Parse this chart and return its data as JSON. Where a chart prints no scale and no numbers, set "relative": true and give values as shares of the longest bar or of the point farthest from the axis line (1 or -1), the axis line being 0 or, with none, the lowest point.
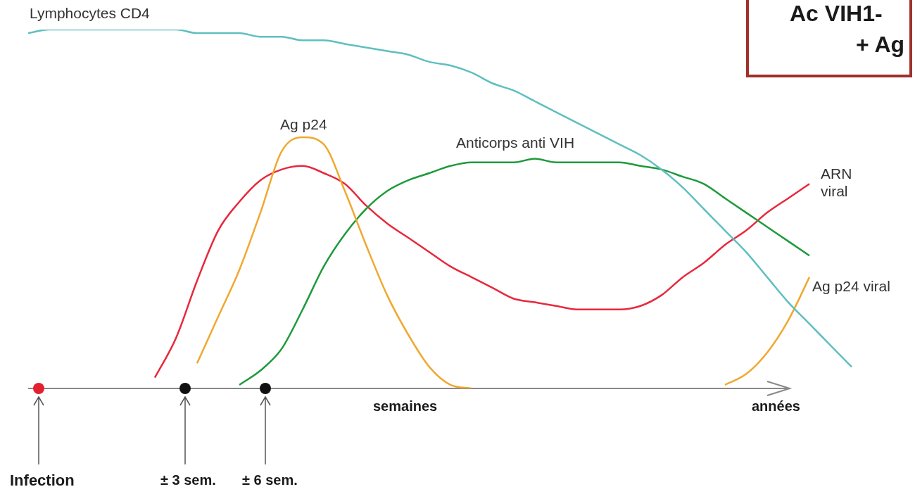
{
  "chart_data": {
    "type": "line",
    "relative": true,
    "categories": [
      null,
      null,
      null,
      null,
      null,
      null,
      null,
      null,
      null,
      null,
      null,
      null,
      null,
      null,
      null,
      null,
      null,
      null,
      null,
      null,
      null,
      null,
      null,
      null,
      null,
      null,
      null,
      null,
      null,
      null,
      null,
      null,
      null,
      null,
      null,
      null,
      null,
      null,
      null,
      null
    ],
    "series": [
      {
        "name": "Lymphocytes CD4",
        "color": "#5fbfbf",
        "values": [
          0.99,
          1.0,
          1.0,
          1.0,
          1.0,
          1.0,
          1.0,
          1.0,
          0.99,
          0.99,
          0.99,
          0.98,
          0.98,
          0.97,
          0.97,
          0.96,
          0.95,
          0.94,
          0.93,
          0.91,
          0.9,
          0.88,
          0.85,
          0.83,
          0.8,
          0.77,
          0.74,
          0.71,
          0.68,
          0.65,
          0.61,
          0.56,
          0.5,
          0.44,
          0.38,
          0.31,
          0.24,
          0.18,
          0.12,
          0.06
        ]
      },
      {
        "name": "Ag p24",
        "color": "#f0a830",
        "values": [
          null,
          null,
          null,
          null,
          null,
          null,
          null,
          null,
          0.07,
          0.2,
          0.33,
          0.49,
          0.66,
          0.7,
          0.68,
          0.55,
          0.4,
          0.26,
          0.15,
          0.06,
          0.01,
          0.0,
          null,
          null,
          null,
          null,
          null,
          null,
          null,
          null,
          null,
          null,
          null,
          null,
          null,
          null,
          null,
          null,
          null,
          null
        ]
      },
      {
        "name": "Anticorps anti VIH",
        "color": "#1e9a3c",
        "values": [
          null,
          null,
          null,
          null,
          null,
          null,
          null,
          null,
          null,
          null,
          0.01,
          0.05,
          0.11,
          0.22,
          0.34,
          0.43,
          0.5,
          0.55,
          0.58,
          0.6,
          0.62,
          0.63,
          0.63,
          0.63,
          0.64,
          0.63,
          0.63,
          0.63,
          0.63,
          0.62,
          0.61,
          0.59,
          0.57,
          0.53,
          0.49,
          0.45,
          0.41,
          0.37,
          null,
          null
        ]
      },
      {
        "name": "ARN viral",
        "color": "#e8283c",
        "values": [
          null,
          null,
          null,
          null,
          null,
          null,
          0.03,
          0.14,
          0.3,
          0.44,
          0.52,
          0.58,
          0.61,
          0.62,
          0.6,
          0.57,
          0.51,
          0.46,
          0.42,
          0.38,
          0.34,
          0.31,
          0.28,
          0.25,
          0.24,
          0.23,
          0.22,
          0.22,
          0.22,
          0.23,
          0.26,
          0.31,
          0.35,
          0.4,
          0.44,
          0.49,
          0.53,
          0.57,
          null,
          null
        ]
      },
      {
        "name": "Ag p24 viral",
        "color": "#f0a830",
        "values": [
          null,
          null,
          null,
          null,
          null,
          null,
          null,
          null,
          null,
          null,
          null,
          null,
          null,
          null,
          null,
          null,
          null,
          null,
          null,
          null,
          null,
          null,
          null,
          null,
          null,
          null,
          null,
          null,
          null,
          null,
          null,
          null,
          null,
          0.01,
          0.04,
          0.1,
          0.19,
          0.31,
          null,
          null
        ]
      }
    ],
    "annotations": [
      "Infection",
      "± 3 sem.",
      "± 6 sem.",
      "semaines",
      "années",
      "Ac VIH1-",
      "+ Ag"
    ]
  }
}
